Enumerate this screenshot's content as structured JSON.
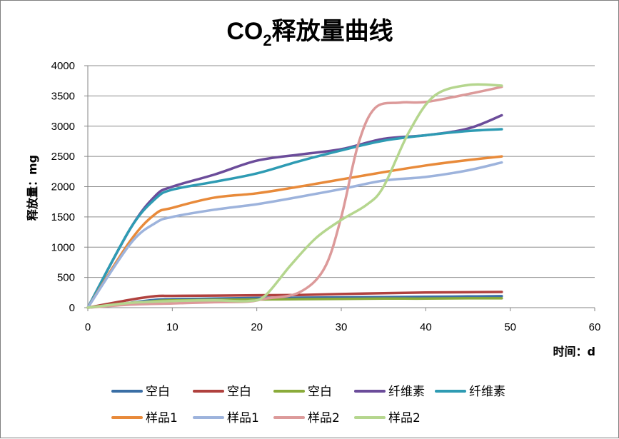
{
  "chart_data": {
    "type": "line",
    "title_main": "CO",
    "title_sub": "2",
    "title_rest": "释放量曲线",
    "xlabel": "时间：d",
    "ylabel": "释放量：mg",
    "xlim": [
      0,
      60
    ],
    "ylim": [
      0,
      4000
    ],
    "xticks": [
      0,
      10,
      20,
      30,
      40,
      50,
      60
    ],
    "yticks": [
      0,
      500,
      1000,
      1500,
      2000,
      2500,
      3000,
      3500,
      4000
    ],
    "grid": "horizontal",
    "legend_position": "bottom",
    "series": [
      {
        "name": "空白",
        "color": "#3a6ea5",
        "x": [
          0,
          5,
          8,
          10,
          15,
          20,
          25,
          30,
          35,
          40,
          45,
          49
        ],
        "y": [
          0,
          80,
          130,
          140,
          150,
          160,
          165,
          170,
          175,
          180,
          185,
          190
        ]
      },
      {
        "name": "空白",
        "color": "#b0413e",
        "x": [
          0,
          5,
          8,
          10,
          15,
          20,
          25,
          30,
          35,
          40,
          45,
          49
        ],
        "y": [
          0,
          130,
          190,
          195,
          200,
          205,
          210,
          225,
          240,
          250,
          255,
          260
        ]
      },
      {
        "name": "空白",
        "color": "#8aab3a",
        "x": [
          0,
          5,
          8,
          10,
          15,
          20,
          25,
          30,
          35,
          40,
          45,
          49
        ],
        "y": [
          0,
          70,
          110,
          120,
          130,
          135,
          140,
          145,
          150,
          150,
          155,
          155
        ]
      },
      {
        "name": "纤维素",
        "color": "#6b4c9a",
        "x": [
          0,
          5,
          8,
          10,
          15,
          20,
          25,
          30,
          35,
          40,
          45,
          49
        ],
        "y": [
          0,
          1300,
          1850,
          2000,
          2200,
          2430,
          2530,
          2620,
          2790,
          2850,
          2960,
          3180
        ]
      },
      {
        "name": "纤维素",
        "color": "#2e9bb3",
        "x": [
          0,
          5,
          8,
          10,
          15,
          20,
          25,
          30,
          35,
          40,
          45,
          49
        ],
        "y": [
          0,
          1300,
          1800,
          1950,
          2080,
          2220,
          2420,
          2600,
          2760,
          2850,
          2920,
          2950
        ]
      },
      {
        "name": "样品1",
        "color": "#e88a3a",
        "x": [
          0,
          5,
          8,
          10,
          15,
          20,
          25,
          30,
          35,
          40,
          45,
          49
        ],
        "y": [
          0,
          1100,
          1550,
          1650,
          1820,
          1890,
          2000,
          2120,
          2240,
          2350,
          2440,
          2500
        ]
      },
      {
        "name": "样品1",
        "color": "#9db3dc",
        "x": [
          0,
          5,
          8,
          10,
          15,
          20,
          25,
          30,
          35,
          40,
          45,
          49
        ],
        "y": [
          0,
          1050,
          1400,
          1500,
          1620,
          1710,
          1830,
          1960,
          2100,
          2160,
          2270,
          2400
        ]
      },
      {
        "name": "样品2",
        "color": "#dc9a9a",
        "x": [
          0,
          5,
          10,
          15,
          19,
          21,
          25,
          28,
          30,
          32,
          34,
          37,
          40,
          45,
          49
        ],
        "y": [
          0,
          50,
          70,
          90,
          100,
          150,
          250,
          650,
          1500,
          2700,
          3300,
          3390,
          3400,
          3530,
          3650
        ]
      },
      {
        "name": "样品2",
        "color": "#b5d68e",
        "x": [
          0,
          5,
          10,
          15,
          19,
          21,
          24,
          27,
          30,
          33,
          35,
          38,
          41,
          45,
          49
        ],
        "y": [
          0,
          80,
          110,
          120,
          110,
          200,
          700,
          1150,
          1450,
          1700,
          2000,
          2900,
          3500,
          3680,
          3670
        ]
      }
    ]
  }
}
